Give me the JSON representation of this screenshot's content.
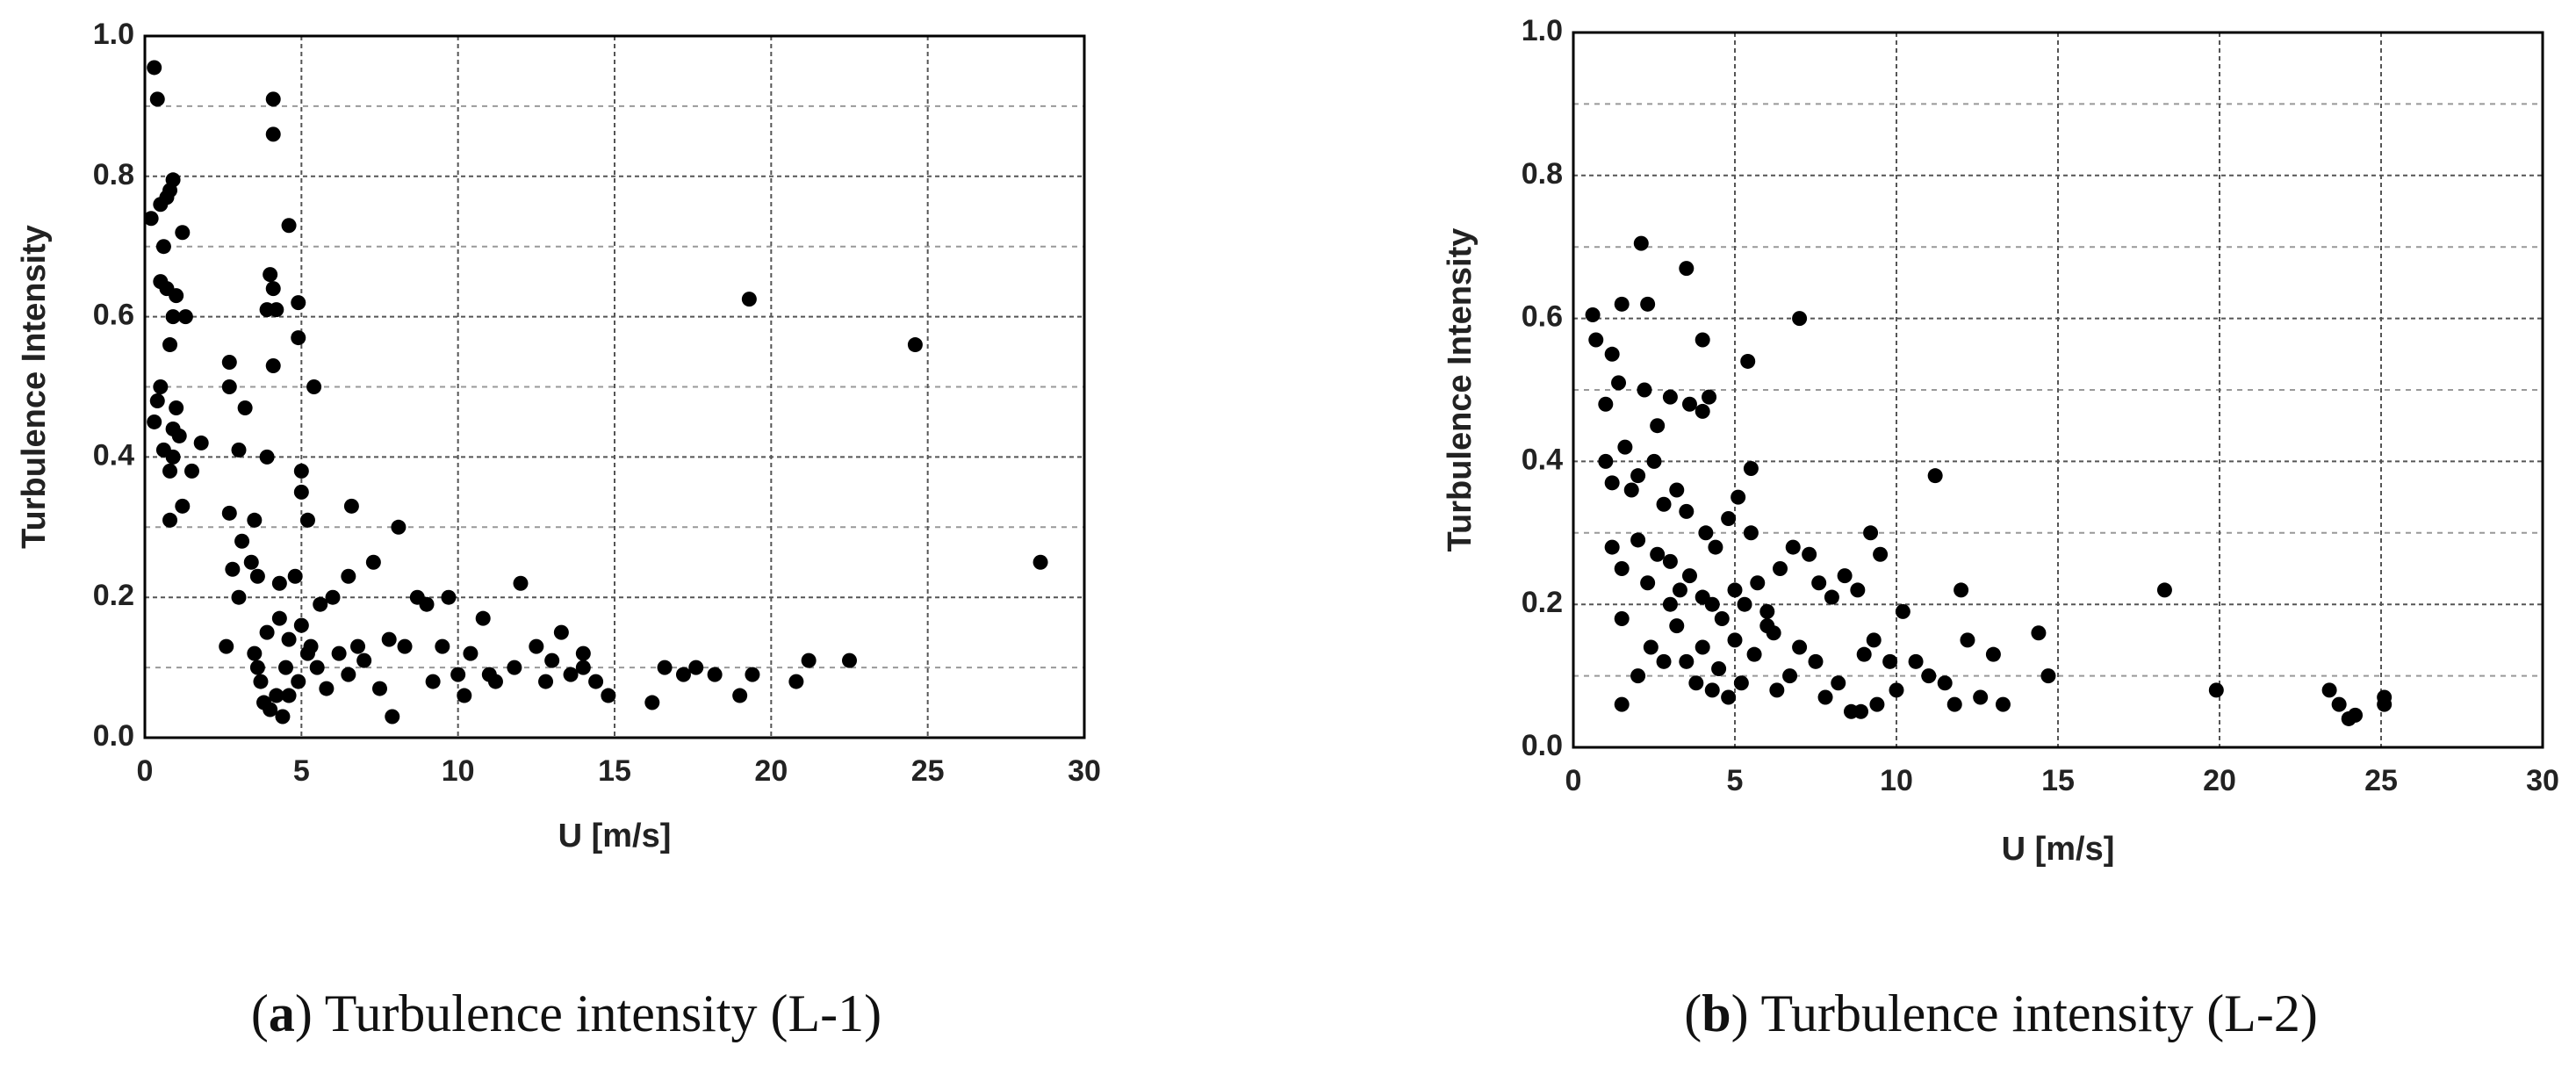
{
  "chart_data": [
    {
      "type": "scatter",
      "caption": [
        "(",
        "a",
        ") Turbulence intensity (L-1)"
      ],
      "xlabel": "U [m/s]",
      "ylabel": "Turbulence Intensity",
      "color": "#000000",
      "grid": true,
      "xlim": [
        0,
        30
      ],
      "xticks": [
        0,
        5,
        10,
        15,
        20,
        25,
        30
      ],
      "ylim": [
        0,
        1
      ],
      "yticks": [
        {
          "value": 0,
          "label": "0.0"
        },
        {
          "value": 0.2,
          "label": "0.2"
        },
        {
          "value": 0.4,
          "label": "0.4"
        },
        {
          "value": 0.6,
          "label": "0.6"
        },
        {
          "value": 0.8,
          "label": "0.8"
        },
        {
          "value": 1,
          "label": "1.0"
        }
      ],
      "y_minor_ticks": [
        0.1,
        0.3,
        0.5,
        0.7,
        0.9
      ],
      "x": [
        0.3,
        0.4,
        0.2,
        0.5,
        0.8,
        0.9,
        0.7,
        0.6,
        1.2,
        1.0,
        0.5,
        0.7,
        0.9,
        0.4,
        0.3,
        0.5,
        0.8,
        1.0,
        1.1,
        0.9,
        0.8,
        1.3,
        1.8,
        1.5,
        1.2,
        0.8,
        0.6,
        0.9,
        2.7,
        2.7,
        3.2,
        3.0,
        3.9,
        4.1,
        4.1,
        4.0,
        4.1,
        3.9,
        4.2,
        4.1,
        4.6,
        4.9,
        4.9,
        5.4,
        5.0,
        5.0,
        5.2,
        2.7,
        2.8,
        3.1,
        3.4,
        3.5,
        3.6,
        4.3,
        4.8,
        5.6,
        6.0,
        6.6,
        6.5,
        7.3,
        8.1,
        2.6,
        3.0,
        3.5,
        3.7,
        3.8,
        4.0,
        4.2,
        4.4,
        4.5,
        4.6,
        4.9,
        5.2,
        5.5,
        5.8,
        6.2,
        6.5,
        7.0,
        7.5,
        7.9,
        8.3,
        8.7,
        9.0,
        9.5,
        9.7,
        10.0,
        10.4,
        10.8,
        11.0,
        11.8,
        12.0,
        12.5,
        13.0,
        13.3,
        13.6,
        14.0,
        14.4,
        14.8,
        16.2,
        16.6,
        17.2,
        17.6,
        18.2,
        19.0,
        19.4,
        19.3,
        20.8,
        21.2,
        22.5,
        24.6,
        28.6,
        3.9,
        4.3,
        5.0,
        5.3,
        6.8,
        7.8,
        9.2,
        10.2,
        11.2,
        12.8,
        14.0,
        4.6,
        3.6
      ],
      "values": [
        0.955,
        0.91,
        0.74,
        0.76,
        0.78,
        0.795,
        0.77,
        0.7,
        0.72,
        0.63,
        0.65,
        0.64,
        0.6,
        0.48,
        0.45,
        0.5,
        0.56,
        0.47,
        0.43,
        0.4,
        0.38,
        0.6,
        0.42,
        0.38,
        0.33,
        0.31,
        0.41,
        0.44,
        0.535,
        0.5,
        0.47,
        0.41,
        0.4,
        0.91,
        0.86,
        0.66,
        0.64,
        0.61,
        0.61,
        0.53,
        0.73,
        0.62,
        0.57,
        0.5,
        0.38,
        0.35,
        0.31,
        0.32,
        0.24,
        0.28,
        0.25,
        0.31,
        0.23,
        0.22,
        0.23,
        0.19,
        0.2,
        0.33,
        0.23,
        0.25,
        0.3,
        0.13,
        0.2,
        0.12,
        0.08,
        0.05,
        0.04,
        0.06,
        0.03,
        0.1,
        0.14,
        0.08,
        0.12,
        0.1,
        0.07,
        0.12,
        0.09,
        0.11,
        0.07,
        0.03,
        0.13,
        0.2,
        0.19,
        0.13,
        0.2,
        0.09,
        0.12,
        0.17,
        0.09,
        0.1,
        0.22,
        0.13,
        0.11,
        0.15,
        0.09,
        0.12,
        0.08,
        0.06,
        0.05,
        0.1,
        0.09,
        0.1,
        0.09,
        0.06,
        0.09,
        0.625,
        0.08,
        0.11,
        0.11,
        0.56,
        0.25,
        0.15,
        0.17,
        0.16,
        0.13,
        0.13,
        0.14,
        0.08,
        0.06,
        0.08,
        0.08,
        0.1,
        0.06,
        0.1
      ]
    },
    {
      "type": "scatter",
      "caption": [
        "(",
        "b",
        ") Turbulence intensity (L-2)"
      ],
      "xlabel": "U [m/s]",
      "ylabel": "Turbulence Intensity",
      "color": "#000000",
      "grid": true,
      "xlim": [
        0,
        30
      ],
      "xticks": [
        0,
        5,
        10,
        15,
        20,
        25,
        30
      ],
      "ylim": [
        0,
        1
      ],
      "yticks": [
        {
          "value": 0,
          "label": "0.0"
        },
        {
          "value": 0.2,
          "label": "0.2"
        },
        {
          "value": 0.4,
          "label": "0.4"
        },
        {
          "value": 0.6,
          "label": "0.6"
        },
        {
          "value": 0.8,
          "label": "0.8"
        },
        {
          "value": 1,
          "label": "1.0"
        }
      ],
      "y_minor_ticks": [
        0.1,
        0.3,
        0.5,
        0.7,
        0.9
      ],
      "x": [
        0.6,
        0.7,
        1.2,
        1.5,
        2.1,
        2.3,
        3.5,
        4.0,
        7.0,
        5.4,
        1.0,
        1.4,
        2.2,
        2.6,
        3.0,
        3.6,
        4.2,
        4.0,
        1.0,
        1.2,
        1.6,
        1.8,
        2.0,
        2.5,
        2.8,
        3.2,
        3.5,
        4.1,
        4.8,
        5.1,
        5.5,
        5.5,
        1.2,
        1.5,
        2.0,
        2.3,
        2.6,
        3.0,
        3.3,
        3.6,
        4.0,
        4.3,
        4.6,
        5.0,
        5.3,
        5.7,
        6.0,
        6.4,
        6.8,
        7.3,
        7.6,
        8.0,
        8.4,
        8.8,
        9.2,
        9.5,
        1.5,
        1.5,
        2.0,
        2.4,
        2.8,
        3.2,
        3.5,
        3.8,
        4.0,
        4.3,
        4.5,
        4.8,
        5.0,
        5.2,
        5.6,
        6.0,
        6.3,
        6.7,
        7.0,
        7.5,
        7.8,
        8.2,
        8.6,
        9.0,
        9.4,
        9.8,
        10.2,
        10.6,
        11.0,
        11.2,
        11.5,
        11.8,
        12.0,
        12.2,
        12.6,
        13.0,
        13.3,
        14.4,
        14.7,
        18.3,
        19.9,
        23.4,
        23.7,
        24.0,
        24.2,
        25.1,
        25.1,
        8.9,
        10.0,
        9.3,
        3.0,
        4.4,
        6.2
      ],
      "values": [
        0.605,
        0.57,
        0.55,
        0.62,
        0.705,
        0.62,
        0.67,
        0.57,
        0.6,
        0.54,
        0.48,
        0.51,
        0.5,
        0.45,
        0.49,
        0.48,
        0.49,
        0.47,
        0.4,
        0.37,
        0.42,
        0.36,
        0.38,
        0.4,
        0.34,
        0.36,
        0.33,
        0.3,
        0.32,
        0.35,
        0.3,
        0.39,
        0.28,
        0.25,
        0.29,
        0.23,
        0.27,
        0.26,
        0.22,
        0.24,
        0.21,
        0.2,
        0.18,
        0.22,
        0.2,
        0.23,
        0.19,
        0.25,
        0.28,
        0.27,
        0.23,
        0.21,
        0.24,
        0.22,
        0.3,
        0.27,
        0.18,
        0.06,
        0.1,
        0.14,
        0.12,
        0.17,
        0.12,
        0.09,
        0.14,
        0.08,
        0.11,
        0.07,
        0.15,
        0.09,
        0.13,
        0.17,
        0.08,
        0.1,
        0.14,
        0.12,
        0.07,
        0.09,
        0.05,
        0.13,
        0.06,
        0.12,
        0.19,
        0.12,
        0.1,
        0.38,
        0.09,
        0.06,
        0.22,
        0.15,
        0.07,
        0.13,
        0.06,
        0.16,
        0.1,
        0.22,
        0.08,
        0.08,
        0.06,
        0.04,
        0.045,
        0.07,
        0.06,
        0.05,
        0.08,
        0.15,
        0.2,
        0.28,
        0.16
      ]
    }
  ]
}
